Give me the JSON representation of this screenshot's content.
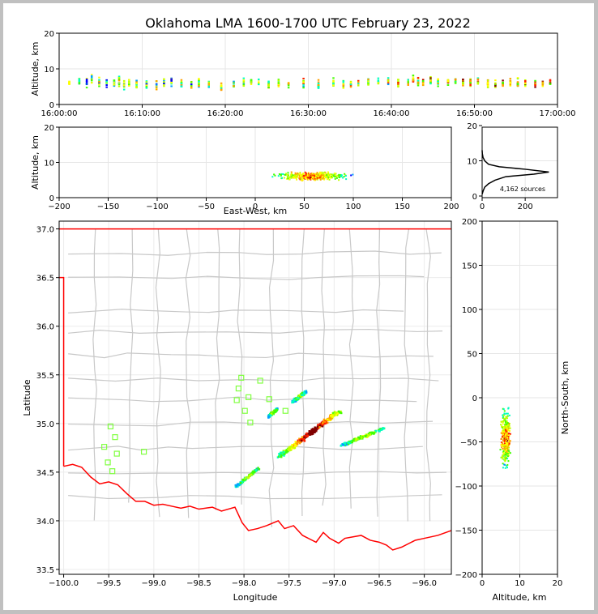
{
  "chart_data": {
    "type": "scatter",
    "title": "Oklahoma LMA 1600-1700 UTC February 23, 2022",
    "source_count_label": "4,162 sources",
    "colors": {
      "state_border": "#ff0000",
      "county_lines": "#c8c8c8",
      "stations": "#80ff40",
      "frame_bg": "#c0c0c0"
    },
    "colormap": [
      "#0000ff",
      "#00a0ff",
      "#00ffc0",
      "#40ff00",
      "#c0ff00",
      "#ffff00",
      "#ffa000",
      "#ff2000",
      "#800000"
    ],
    "panels": [
      {
        "id": "time-altitude",
        "type": "scatter",
        "xlabel": "",
        "ylabel": "Altitude, km",
        "xlim": [
          "16:00:00",
          "17:00:00"
        ],
        "ylim": [
          0,
          20
        ],
        "xticks": [
          "16:00:00",
          "16:10:00",
          "16:20:00",
          "16:30:00",
          "16:40:00",
          "16:50:00",
          "17:00:00"
        ],
        "yticks": [
          "0",
          "10",
          "20"
        ],
        "grid": true
      },
      {
        "id": "eastwest-altitude",
        "type": "scatter",
        "xlabel": "East-West, km",
        "ylabel": "Altitude, km",
        "xlim": [
          -200,
          200
        ],
        "ylim": [
          0,
          20
        ],
        "xticks": [
          "−200",
          "−150",
          "−100",
          "−50",
          "0",
          "50",
          "100",
          "150",
          "200"
        ],
        "yticks": [
          "0",
          "10",
          "20"
        ],
        "grid": true
      },
      {
        "id": "altitude-histogram",
        "type": "line",
        "xlabel": "",
        "ylabel": "",
        "xlim": [
          0,
          350
        ],
        "ylim": [
          0,
          20
        ],
        "xticks": [
          "0",
          "200"
        ],
        "yticks": [
          "0",
          "10",
          "20"
        ],
        "profile": [
          [
            0,
            0.5
          ],
          [
            5,
            1.5
          ],
          [
            12,
            2.5
          ],
          [
            30,
            3.5
          ],
          [
            60,
            4.5
          ],
          [
            110,
            5.5
          ],
          [
            240,
            6.2
          ],
          [
            310,
            6.8
          ],
          [
            200,
            7.6
          ],
          [
            80,
            8.3
          ],
          [
            30,
            9
          ],
          [
            12,
            10
          ],
          [
            4,
            11
          ],
          [
            1,
            12
          ],
          [
            0,
            13
          ]
        ],
        "grid": true
      },
      {
        "id": "plan-view",
        "type": "map",
        "xlabel": "Longitude",
        "ylabel": "Latitude",
        "xlim": [
          -100.05,
          -95.7
        ],
        "ylim": [
          33.45,
          37.08
        ],
        "xticks": [
          "−100.0",
          "−99.5",
          "−99.0",
          "−98.5",
          "−98.0",
          "−97.5",
          "−97.0",
          "−96.5",
          "−96.0"
        ],
        "yticks": [
          "33.5",
          "34.0",
          "34.5",
          "35.0",
          "35.5",
          "36.0",
          "36.5",
          "37.0"
        ],
        "grid": true,
        "stations": [
          [
            -98.03,
            35.47
          ],
          [
            -97.82,
            35.44
          ],
          [
            -98.06,
            35.36
          ],
          [
            -97.95,
            35.27
          ],
          [
            -98.08,
            35.24
          ],
          [
            -97.72,
            35.25
          ],
          [
            -97.99,
            35.13
          ],
          [
            -97.54,
            35.13
          ],
          [
            -97.93,
            35.01
          ],
          [
            -99.48,
            34.97
          ],
          [
            -99.43,
            34.86
          ],
          [
            -99.55,
            34.76
          ],
          [
            -99.41,
            34.69
          ],
          [
            -99.11,
            34.71
          ],
          [
            -99.51,
            34.6
          ],
          [
            -99.46,
            34.51
          ]
        ],
        "lightning_segments": [
          {
            "from": [
              -97.62,
              34.67
            ],
            "to": [
              -96.95,
              35.14
            ],
            "width_deg": 0.06,
            "density": 3
          },
          {
            "from": [
              -97.47,
              35.23
            ],
            "to": [
              -97.32,
              35.34
            ],
            "width_deg": 0.04,
            "density": 1
          },
          {
            "from": [
              -97.74,
              35.08
            ],
            "to": [
              -97.64,
              35.16
            ],
            "width_deg": 0.03,
            "density": 1
          },
          {
            "from": [
              -96.94,
              34.78
            ],
            "to": [
              -96.46,
              34.96
            ],
            "width_deg": 0.04,
            "density": 1.2
          },
          {
            "from": [
              -98.1,
              34.36
            ],
            "to": [
              -97.85,
              34.55
            ],
            "width_deg": 0.03,
            "density": 1
          }
        ]
      },
      {
        "id": "altitude-northsouth",
        "type": "scatter",
        "xlabel": "Altitude, km",
        "ylabel": "North-South, km",
        "xlim": [
          0,
          20
        ],
        "ylim": [
          -200,
          200
        ],
        "xticks": [
          "0",
          "10",
          "20"
        ],
        "yticks": [
          "−200",
          "−150",
          "−100",
          "−50",
          "0",
          "50",
          "100",
          "150",
          "200"
        ],
        "grid": true
      }
    ],
    "time_activity": [
      [
        16.02,
        6
      ],
      [
        16.04,
        6.5
      ],
      [
        16.055,
        6
      ],
      [
        16.065,
        7
      ],
      [
        16.08,
        6.5
      ],
      [
        16.095,
        6
      ],
      [
        16.11,
        6
      ],
      [
        16.12,
        6.5
      ],
      [
        16.13,
        5.5
      ],
      [
        16.14,
        6
      ],
      [
        16.155,
        6
      ],
      [
        16.175,
        5.5
      ],
      [
        16.195,
        5.5
      ],
      [
        16.21,
        6
      ],
      [
        16.225,
        6.5
      ],
      [
        16.245,
        6
      ],
      [
        16.265,
        5.5
      ],
      [
        16.28,
        6
      ],
      [
        16.3,
        6
      ],
      [
        16.325,
        5
      ],
      [
        16.35,
        5.5
      ],
      [
        16.37,
        6
      ],
      [
        16.385,
        6.5
      ],
      [
        16.4,
        6
      ],
      [
        16.42,
        5.5
      ],
      [
        16.44,
        6
      ],
      [
        16.46,
        5.5
      ],
      [
        16.49,
        6
      ],
      [
        16.52,
        5.5
      ],
      [
        16.55,
        6
      ],
      [
        16.57,
        5.5
      ],
      [
        16.585,
        5.5
      ],
      [
        16.6,
        6
      ],
      [
        16.62,
        6
      ],
      [
        16.64,
        6
      ],
      [
        16.66,
        6.5
      ],
      [
        16.68,
        6
      ],
      [
        16.7,
        6
      ],
      [
        16.71,
        7
      ],
      [
        16.72,
        6.5
      ],
      [
        16.73,
        6.5
      ],
      [
        16.745,
        6.5
      ],
      [
        16.76,
        6.5
      ],
      [
        16.78,
        6.5
      ],
      [
        16.795,
        6.5
      ],
      [
        16.81,
        6
      ],
      [
        16.825,
        6
      ],
      [
        16.84,
        6.5
      ],
      [
        16.86,
        6
      ],
      [
        16.875,
        6
      ],
      [
        16.89,
        6
      ],
      [
        16.905,
        6
      ],
      [
        16.92,
        6
      ],
      [
        16.935,
        6
      ],
      [
        16.955,
        6
      ],
      [
        16.97,
        6
      ],
      [
        16.985,
        6
      ]
    ]
  }
}
